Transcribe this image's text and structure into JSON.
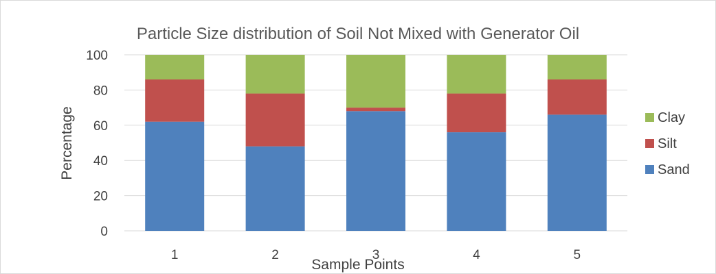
{
  "chart_data": {
    "type": "bar",
    "stacked": true,
    "title": "Particle Size distribution of Soil Not Mixed with Generator Oil",
    "xlabel": "Sample Points",
    "ylabel": "Percentage",
    "categories": [
      "1",
      "2",
      "3",
      "4",
      "5"
    ],
    "ylim": [
      0,
      100
    ],
    "yticks": [
      0,
      20,
      40,
      60,
      80,
      100
    ],
    "grid": true,
    "legend_position": "right",
    "series": [
      {
        "name": "Sand",
        "color": "#4f81bd",
        "values": [
          62,
          48,
          68,
          56,
          66
        ]
      },
      {
        "name": "Silt",
        "color": "#c0504d",
        "values": [
          24,
          30,
          2,
          22,
          20
        ]
      },
      {
        "name": "Clay",
        "color": "#9bbb59",
        "values": [
          14,
          22,
          30,
          22,
          14
        ]
      }
    ]
  }
}
